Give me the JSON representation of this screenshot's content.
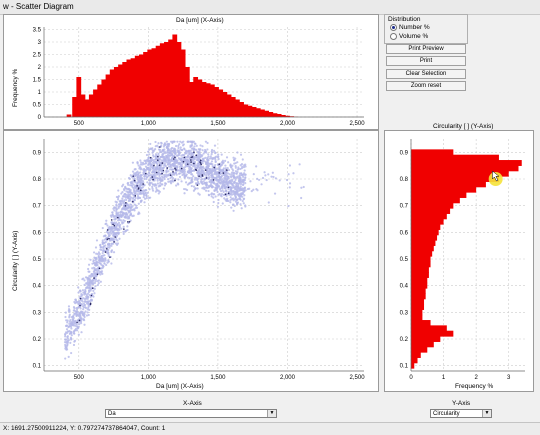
{
  "window": {
    "title": "w - Scatter Diagram"
  },
  "top_histogram": {
    "title": "Da [um] (X-Axis)",
    "ylabel": "Frequency %"
  },
  "scatter": {
    "xlabel": "Da [um] (X-Axis)",
    "ylabel": "Circularity [ ] (Y-Axis)"
  },
  "right_histogram": {
    "title": "Circularity [ ] (Y-Axis)",
    "xlabel": "Frequency %"
  },
  "distribution": {
    "label": "Distribution",
    "options": [
      {
        "label": "Number %",
        "selected": true
      },
      {
        "label": "Volume %",
        "selected": false
      }
    ]
  },
  "buttons": {
    "print_preview": "Print Preview",
    "print": "Print",
    "clear_selection": "Clear Selection",
    "zoom_reset": "Zoom reset"
  },
  "x_axis_select": {
    "label": "X-Axis",
    "value": "Da"
  },
  "y_axis_select": {
    "label": "Y-Axis",
    "value": "Circularity"
  },
  "status": {
    "text": "X: 1691.27500911224, Y: 0.797274737864047, Count: 1"
  },
  "colors": {
    "histogram": "#f00000",
    "scatter": "#b4b8e8",
    "scatter_dark": "#2a2a66",
    "highlight": "#f5e23a"
  },
  "chart_data": [
    {
      "type": "bar",
      "name": "top-histogram",
      "xlabel": "Da [um] (X-Axis)",
      "ylabel": "Frequency %",
      "xlim": [
        250,
        2550
      ],
      "ylim": [
        0,
        3.6
      ],
      "x_ticks": [
        "500",
        "1,000",
        "1,500",
        "2,000",
        "2,500"
      ],
      "y_ticks": [
        "0",
        "0.5",
        "1",
        "1.5",
        "2",
        "2.5",
        "3",
        "3.5"
      ],
      "x": [
        430,
        470,
        500,
        530,
        560,
        590,
        620,
        650,
        680,
        710,
        740,
        770,
        800,
        830,
        860,
        890,
        920,
        950,
        980,
        1010,
        1040,
        1070,
        1100,
        1130,
        1160,
        1190,
        1220,
        1250,
        1280,
        1310,
        1340,
        1370,
        1400,
        1430,
        1460,
        1490,
        1520,
        1550,
        1580,
        1610,
        1640,
        1670,
        1700,
        1730,
        1760,
        1790,
        1820,
        1850,
        1880,
        1910,
        1940,
        1970,
        2000,
        2030,
        2060
      ],
      "values": [
        0.1,
        0.8,
        1.6,
        0.9,
        0.7,
        0.9,
        1.1,
        1.3,
        1.5,
        1.7,
        1.9,
        2.0,
        2.1,
        2.2,
        2.3,
        2.35,
        2.45,
        2.5,
        2.6,
        2.7,
        2.75,
        2.85,
        2.95,
        3.0,
        3.1,
        3.3,
        3.0,
        2.7,
        2.0,
        1.4,
        1.6,
        1.5,
        1.4,
        1.35,
        1.3,
        1.2,
        1.1,
        1.0,
        0.9,
        0.8,
        0.7,
        0.6,
        0.5,
        0.45,
        0.4,
        0.35,
        0.3,
        0.25,
        0.2,
        0.15,
        0.12,
        0.08,
        0.05,
        0.03,
        0.01
      ]
    },
    {
      "type": "scatter",
      "name": "scatter-plot",
      "xlabel": "Da [um] (X-Axis)",
      "ylabel": "Circularity [ ] (Y-Axis)",
      "xlim": [
        250,
        2550
      ],
      "ylim": [
        0.08,
        0.95
      ],
      "x_ticks": [
        "500",
        "1,000",
        "1,500",
        "2,000",
        "2,500"
      ],
      "y_ticks": [
        "0.1",
        "0.2",
        "0.3",
        "0.4",
        "0.5",
        "0.6",
        "0.7",
        "0.8",
        "0.9"
      ],
      "trend": {
        "x": [
          400,
          500,
          600,
          700,
          800,
          900,
          1000,
          1100,
          1200,
          1300,
          1400,
          1500,
          1600
        ],
        "y": [
          0.2,
          0.3,
          0.42,
          0.55,
          0.67,
          0.76,
          0.82,
          0.86,
          0.87,
          0.86,
          0.84,
          0.81,
          0.78
        ]
      }
    },
    {
      "type": "bar",
      "name": "right-histogram",
      "orientation": "horizontal",
      "xlabel": "Frequency %",
      "xlim": [
        0,
        3.5
      ],
      "ylim": [
        0.08,
        0.95
      ],
      "x_ticks": [
        "0",
        "1",
        "2",
        "3"
      ],
      "y_ticks": [
        "0.1",
        "0.2",
        "0.3",
        "0.4",
        "0.5",
        "0.6",
        "0.7",
        "0.8",
        "0.9"
      ],
      "y": [
        0.1,
        0.12,
        0.14,
        0.16,
        0.18,
        0.2,
        0.22,
        0.24,
        0.26,
        0.28,
        0.3,
        0.32,
        0.34,
        0.36,
        0.38,
        0.4,
        0.42,
        0.44,
        0.46,
        0.48,
        0.5,
        0.52,
        0.54,
        0.56,
        0.58,
        0.6,
        0.62,
        0.64,
        0.66,
        0.68,
        0.7,
        0.72,
        0.74,
        0.76,
        0.78,
        0.8,
        0.82,
        0.84,
        0.86,
        0.88,
        0.9
      ],
      "values": [
        0.1,
        0.2,
        0.3,
        0.5,
        0.7,
        0.9,
        1.3,
        1.1,
        0.6,
        0.35,
        0.35,
        0.4,
        0.4,
        0.45,
        0.45,
        0.5,
        0.5,
        0.55,
        0.55,
        0.6,
        0.6,
        0.65,
        0.7,
        0.75,
        0.8,
        0.85,
        0.9,
        1.0,
        1.1,
        1.2,
        1.3,
        1.5,
        1.7,
        2.0,
        2.3,
        2.7,
        3.0,
        3.3,
        3.4,
        2.7,
        1.3
      ]
    }
  ]
}
